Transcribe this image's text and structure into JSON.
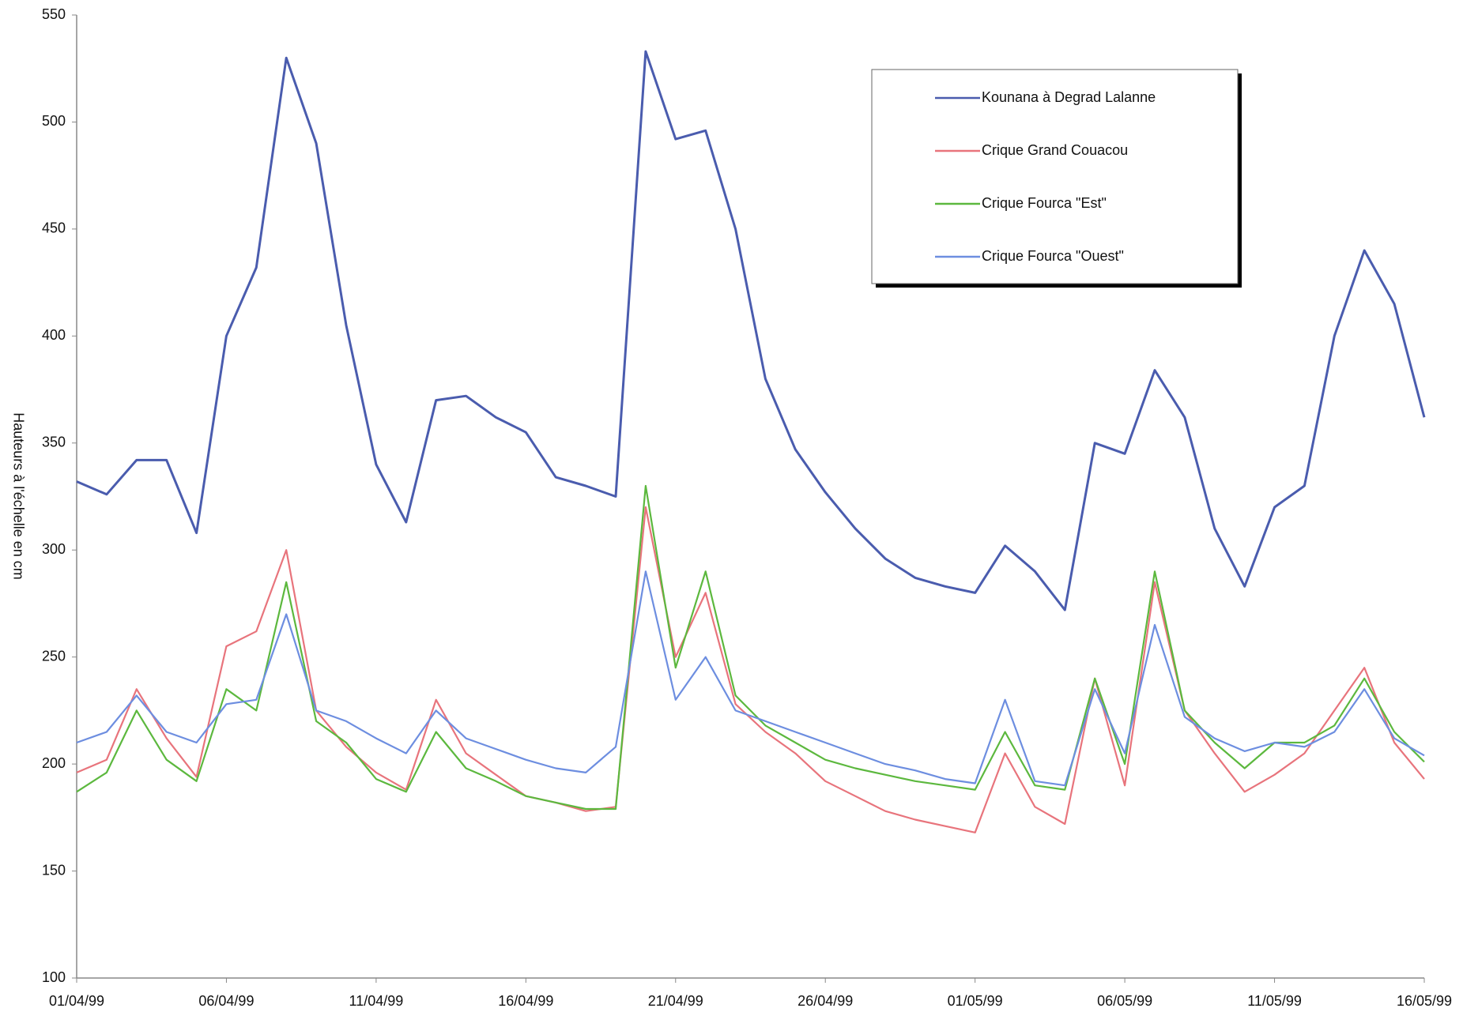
{
  "chart_data": {
    "type": "line",
    "y_label": "Hauteurs à l'échelle en cm",
    "categories": [
      "01/04/99",
      null,
      null,
      null,
      null,
      "06/04/99",
      null,
      null,
      null,
      null,
      "11/04/99",
      null,
      null,
      null,
      null,
      "16/04/99",
      null,
      null,
      null,
      null,
      "21/04/99",
      null,
      null,
      null,
      null,
      "26/04/99",
      null,
      null,
      null,
      null,
      "01/05/99",
      null,
      null,
      null,
      null,
      "06/05/99",
      null,
      null,
      null,
      null,
      "11/05/99",
      null,
      null,
      null,
      null,
      "16/05/99"
    ],
    "series": [
      {
        "name": "Kounana à Degrad Lalanne",
        "color": "#4a5cae",
        "values": [
          332,
          326,
          342,
          342,
          308,
          400,
          432,
          530,
          490,
          405,
          340,
          313,
          370,
          372,
          362,
          355,
          334,
          330,
          325,
          533,
          492,
          496,
          450,
          380,
          347,
          327,
          310,
          296,
          287,
          283,
          280,
          302,
          290,
          272,
          350,
          345,
          384,
          362,
          310,
          283,
          320,
          330,
          400,
          440,
          415,
          362
        ]
      },
      {
        "name": "Crique Grand Couacou",
        "color": "#e8747c",
        "values": [
          196,
          202,
          235,
          212,
          194,
          255,
          262,
          300,
          225,
          208,
          196,
          188,
          230,
          205,
          195,
          185,
          182,
          178,
          180,
          320,
          250,
          280,
          228,
          215,
          205,
          192,
          185,
          178,
          174,
          171,
          168,
          205,
          180,
          172,
          240,
          190,
          285,
          225,
          205,
          187,
          195,
          205,
          225,
          245,
          210,
          193
        ]
      },
      {
        "name": "Crique Fourca \"Est\"",
        "color": "#5cb83e",
        "values": [
          187,
          196,
          225,
          202,
          192,
          235,
          225,
          285,
          220,
          210,
          193,
          187,
          215,
          198,
          192,
          185,
          182,
          179,
          179,
          330,
          245,
          290,
          232,
          218,
          210,
          202,
          198,
          195,
          192,
          190,
          188,
          215,
          190,
          188,
          240,
          200,
          290,
          225,
          210,
          198,
          210,
          210,
          218,
          240,
          215,
          201
        ]
      },
      {
        "name": "Crique Fourca \"Ouest\"",
        "color": "#6d8ee0",
        "values": [
          210,
          215,
          232,
          215,
          210,
          228,
          230,
          270,
          225,
          220,
          212,
          205,
          225,
          212,
          207,
          202,
          198,
          196,
          208,
          290,
          230,
          250,
          225,
          220,
          215,
          210,
          205,
          200,
          197,
          193,
          191,
          230,
          192,
          190,
          235,
          205,
          265,
          222,
          212,
          206,
          210,
          208,
          215,
          235,
          212,
          204
        ]
      }
    ],
    "ylim": [
      100,
      550
    ],
    "yticks": [
      100,
      150,
      200,
      250,
      300,
      350,
      400,
      450,
      500,
      550
    ],
    "grid": false,
    "legend": "top-right"
  }
}
